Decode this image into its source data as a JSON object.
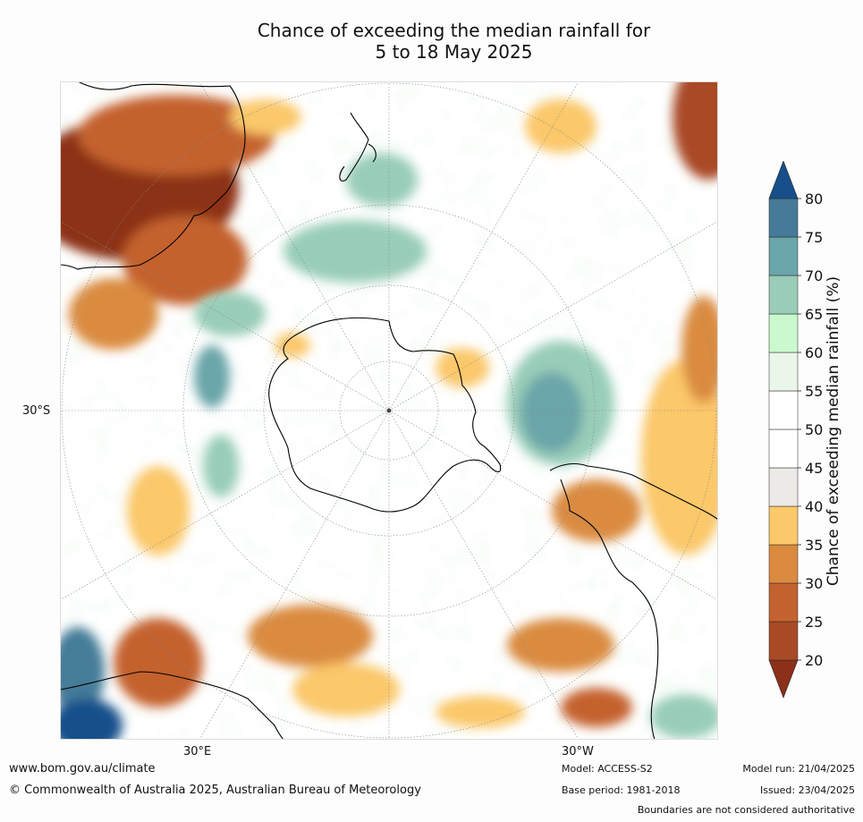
{
  "title": {
    "line1": "Chance of exceeding the median rainfall for",
    "line2": "5 to 18 May 2025"
  },
  "map": {
    "projection": "south polar stereographic",
    "axis_labels": {
      "lat_30s": "30°S",
      "lon_30e": "30°E",
      "lon_30w": "30°W"
    }
  },
  "colorbar": {
    "label": "Chance of exceeding median rainfall (%)",
    "ticks": [
      "20",
      "25",
      "30",
      "35",
      "40",
      "45",
      "50",
      "55",
      "60",
      "65",
      "70",
      "75",
      "80"
    ],
    "colors": [
      "#8c3019",
      "#a94a27",
      "#c4622f",
      "#da8b40",
      "#fbc86a",
      "#eceae6",
      "#ffffff",
      "#ffffff",
      "#eaf6ea",
      "#cbf9ce",
      "#99cdb8",
      "#6aa5a9",
      "#457b98",
      "#174f8a"
    ]
  },
  "footer": {
    "website": "www.bom.gov.au/climate",
    "copyright": "© Commonwealth of Australia 2025, Australian Bureau of Meteorology",
    "model": "Model: ACCESS-S2",
    "base_period": "Base period: 1981-2018",
    "model_run": "Model run: 21/04/2025",
    "issued": "Issued: 23/04/2025",
    "disclaimer": "Boundaries are not considered authoritative"
  }
}
